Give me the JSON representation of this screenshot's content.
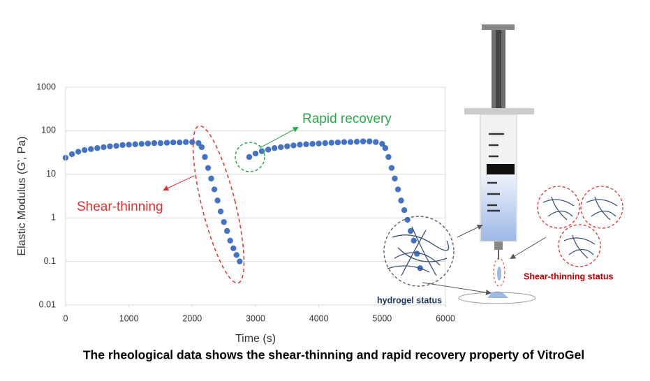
{
  "chart_data": {
    "type": "scatter",
    "log_y": true,
    "grid": true,
    "xlabel": "Time (s)",
    "ylabel": "Elastic Modulus (G', Pa)",
    "xlim": [
      0,
      6000
    ],
    "xticks": [
      0,
      1000,
      2000,
      3000,
      4000,
      5000,
      6000
    ],
    "ylim": [
      0.01,
      1000
    ],
    "yticks": [
      0.01,
      0.1,
      1,
      10,
      100,
      1000
    ],
    "series": [
      {
        "color": "#4472c4",
        "x": [
          0,
          100,
          200,
          300,
          400,
          500,
          600,
          700,
          800,
          900,
          1000,
          1100,
          1200,
          1300,
          1400,
          1500,
          1600,
          1700,
          1800,
          1900,
          2000,
          2100,
          2150,
          2200,
          2250,
          2300,
          2350,
          2400,
          2450,
          2500,
          2550,
          2600,
          2650,
          2700,
          2750,
          2900,
          3000,
          3100,
          3200,
          3300,
          3400,
          3500,
          3600,
          3700,
          3800,
          3900,
          4000,
          4100,
          4200,
          4300,
          4400,
          4500,
          4600,
          4700,
          4800,
          4900,
          5000,
          5050,
          5100,
          5150,
          5200,
          5250,
          5300,
          5350,
          5400,
          5450,
          5500,
          5550,
          5600
        ],
        "values": [
          24,
          29,
          33,
          36,
          38,
          40,
          42,
          44,
          45,
          47,
          48,
          49,
          50,
          51,
          52,
          52,
          53,
          54,
          54,
          55,
          55,
          52,
          42,
          25,
          14,
          8,
          4.5,
          2.5,
          1.4,
          0.8,
          0.5,
          0.3,
          0.2,
          0.14,
          0.1,
          25,
          30,
          34,
          37,
          40,
          42,
          44,
          46,
          48,
          49,
          50,
          51,
          52,
          53,
          54,
          55,
          55,
          56,
          57,
          57,
          55,
          50,
          40,
          25,
          14,
          8,
          4.5,
          2.5,
          1.5,
          0.9,
          0.5,
          0.3,
          0.15,
          0.07
        ]
      }
    ],
    "annotations": {
      "shear_thinning": "Shear-thinning",
      "rapid_recovery": "Rapid recovery",
      "hydrogel_status": "hydrogel status",
      "shear_thinning_status": "Shear-thinning status"
    },
    "caption": "The rheological data shows the shear-thinning and rapid recovery property of VitroGel"
  }
}
